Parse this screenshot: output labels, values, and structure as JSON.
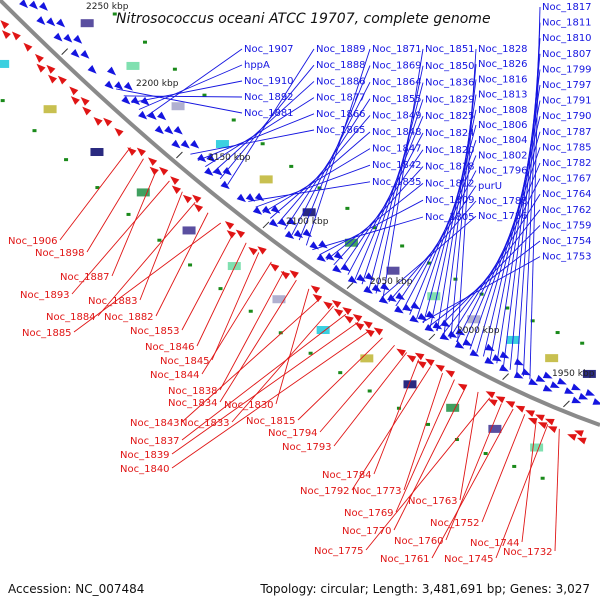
{
  "title": "Nitrosococcus oceani ATCC 19707, complete genome",
  "footer": {
    "accession": "Accession: NC_007484",
    "topology": "Topology: circular; Length: 3,481,691 bp; Genes: 3,027"
  },
  "colors": {
    "forward_strand": "#1515e0",
    "reverse_strand": "#e01515",
    "backbone": "#8a8a8a",
    "gc_marker": "#1a8a1a"
  },
  "ticks": [
    "2250 kbp",
    "2200 kbp",
    "2150 kbp",
    "2100 kbp",
    "2050 kbp",
    "2000 kbp",
    "1950 kbp"
  ],
  "blue_labels": [
    "Noc_1817",
    "Noc_1811",
    "Noc_1810",
    "Noc_1807",
    "Noc_1799",
    "Noc_1797",
    "Noc_1791",
    "Noc_1790",
    "Noc_1787",
    "Noc_1785",
    "Noc_1782",
    "Noc_1767",
    "Noc_1764",
    "Noc_1762",
    "Noc_1759",
    "Noc_1754",
    "Noc_1753",
    "Noc_1828",
    "Noc_1826",
    "Noc_1816",
    "Noc_1813",
    "Noc_1808",
    "Noc_1806",
    "Noc_1804",
    "Noc_1802",
    "Noc_1796",
    "purU",
    "Noc_1788",
    "Noc_1786",
    "Noc_1851",
    "Noc_1850",
    "Noc_1836",
    "Noc_1829",
    "Noc_1825",
    "Noc_1824",
    "Noc_1820",
    "Noc_1818",
    "Noc_1812",
    "Noc_1809",
    "Noc_1805",
    "Noc_1871",
    "Noc_1869",
    "Noc_1864",
    "Noc_1855",
    "Noc_1849",
    "Noc_1848",
    "Noc_1847",
    "Noc_1842",
    "Noc_1835",
    "Noc_1889",
    "Noc_1888",
    "Noc_1886",
    "Noc_1877",
    "Noc_1866",
    "Noc_1865",
    "Noc_1907",
    "hppA",
    "Noc_1910",
    "Noc_1892",
    "Noc_1881"
  ],
  "red_labels": [
    "Noc_1906",
    "Noc_1898",
    "Noc_1887",
    "Noc_1893",
    "Noc_1883",
    "Noc_1884",
    "Noc_1882",
    "Noc_1885",
    "Noc_1853",
    "Noc_1846",
    "Noc_1845",
    "Noc_1844",
    "Noc_1838",
    "Noc_1834",
    "Noc_1830",
    "Noc_1843",
    "Noc_1833",
    "Noc_1837",
    "Noc_1839",
    "Noc_1840",
    "Noc_1815",
    "Noc_1794",
    "Noc_1793",
    "Noc_1784",
    "Noc_1792",
    "Noc_1773",
    "Noc_1769",
    "Noc_1770",
    "Noc_1763",
    "Noc_1775",
    "Noc_1760",
    "Noc_1761",
    "Noc_1752",
    "Noc_1744",
    "Noc_1745",
    "Noc_1732"
  ]
}
